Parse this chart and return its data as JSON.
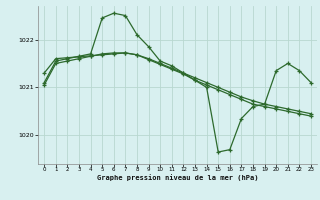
{
  "xlabel": "Graphe pression niveau de la mer (hPa)",
  "background_color": "#d8f0f0",
  "grid_color": "#b8d8d0",
  "line_color": "#2d6a2d",
  "ylim": [
    1019.4,
    1022.7
  ],
  "xlim": [
    -0.5,
    23.5
  ],
  "yticks": [
    1020,
    1021,
    1022
  ],
  "xticks": [
    0,
    1,
    2,
    3,
    4,
    5,
    6,
    7,
    8,
    9,
    10,
    11,
    12,
    13,
    14,
    15,
    16,
    17,
    18,
    19,
    20,
    21,
    22,
    23
  ],
  "line1_x": [
    0,
    1,
    2,
    3,
    4,
    5,
    6,
    7,
    8,
    9,
    10,
    11,
    12,
    13,
    14,
    15,
    16,
    17,
    18,
    19,
    20,
    21,
    22,
    23
  ],
  "line1_y": [
    1021.1,
    1021.55,
    1021.6,
    1021.65,
    1021.7,
    1022.45,
    1022.55,
    1022.5,
    1022.1,
    1021.85,
    1021.55,
    1021.45,
    1021.3,
    1021.15,
    1021.0,
    1019.65,
    1019.7,
    1020.35,
    1020.6,
    1020.65,
    1021.35,
    1021.5,
    1021.35,
    1021.1
  ],
  "line2_x": [
    0,
    1,
    2,
    3,
    4,
    5,
    6,
    7,
    8,
    9,
    10,
    11,
    12,
    13,
    14,
    15,
    16,
    17,
    18,
    19,
    20,
    21,
    22,
    23
  ],
  "line2_y": [
    1021.05,
    1021.5,
    1021.55,
    1021.6,
    1021.65,
    1021.7,
    1021.72,
    1021.72,
    1021.68,
    1021.58,
    1021.48,
    1021.38,
    1021.28,
    1021.15,
    1021.05,
    1020.95,
    1020.85,
    1020.75,
    1020.65,
    1020.6,
    1020.55,
    1020.5,
    1020.45,
    1020.4
  ],
  "line3_x": [
    0,
    1,
    2,
    3,
    4,
    5,
    6,
    7,
    8,
    9,
    10,
    11,
    12,
    13,
    14,
    15,
    16,
    17,
    18,
    19,
    20,
    21,
    22,
    23
  ],
  "line3_y": [
    1021.3,
    1021.6,
    1021.62,
    1021.64,
    1021.66,
    1021.68,
    1021.7,
    1021.72,
    1021.68,
    1021.6,
    1021.5,
    1021.4,
    1021.3,
    1021.2,
    1021.1,
    1021.0,
    1020.9,
    1020.8,
    1020.72,
    1020.65,
    1020.6,
    1020.55,
    1020.5,
    1020.45
  ]
}
